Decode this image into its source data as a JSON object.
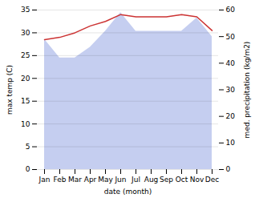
{
  "chart_data": {
    "type": "line",
    "xlabel": "date (month)",
    "ylabel": "max temp (C)",
    "y2label": "med. precipitation (kg/m2)",
    "categories": [
      "Jan",
      "Feb",
      "Mar",
      "Apr",
      "May",
      "Jun",
      "Jul",
      "Aug",
      "Sep",
      "Oct",
      "Nov",
      "Dec"
    ],
    "series": [
      {
        "type": "area",
        "axis": "y2",
        "color": "#c5cef0",
        "values": [
          49.0,
          42.0,
          42.0,
          46.0,
          52.0,
          59.0,
          52.0,
          52.0,
          52.0,
          52.0,
          57.0,
          50.0
        ]
      },
      {
        "type": "line",
        "color": "#cc3333",
        "values": [
          28.5,
          29.0,
          30.0,
          31.5,
          32.5,
          34.0,
          33.5,
          33.5,
          33.5,
          34.0,
          33.5,
          30.5
        ]
      }
    ],
    "ylim": [
      0,
      35
    ],
    "yticks": [
      0,
      5,
      10,
      15,
      20,
      25,
      30,
      35
    ],
    "y2lim": [
      0,
      60
    ],
    "y2ticks": [
      0,
      10,
      20,
      30,
      40,
      50,
      60
    ],
    "grid": true
  }
}
